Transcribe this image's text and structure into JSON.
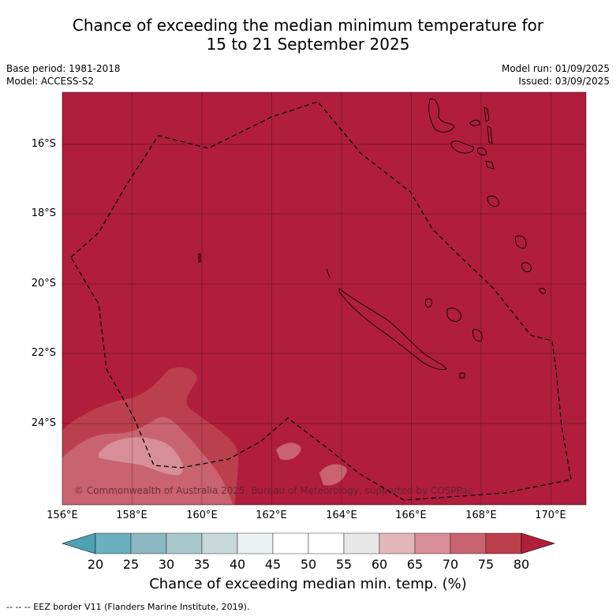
{
  "title_line1": "Chance of exceeding the median minimum temperature for",
  "title_line2": "15 to 21 September 2025",
  "base_period": "Base period: 1981-2018",
  "model": "Model: ACCESS-S2",
  "model_run": "Model run: 01/09/2025",
  "issued": "Issued: 03/09/2025",
  "lat_labels": [
    "16°S",
    "18°S",
    "20°S",
    "22°S",
    "24°S"
  ],
  "lon_labels": [
    "156°E",
    "158°E",
    "160°E",
    "162°E",
    "164°E",
    "166°E",
    "168°E",
    "170°E"
  ],
  "copyright": "© Commonwealth of Australia 2025, Bureau of Meteorology, supported by COSPPac",
  "colorbar": {
    "ticks": [
      "20",
      "25",
      "30",
      "35",
      "40",
      "45",
      "50",
      "55",
      "60",
      "65",
      "70",
      "75",
      "80"
    ],
    "colors": [
      "#4fa2b2",
      "#6aafbd",
      "#8ab7c2",
      "#a9c8cd",
      "#c8d9dc",
      "#ebf1f2",
      "#ffffff",
      "#ffffff",
      "#e7e7e7",
      "#e3b7bb",
      "#d78e96",
      "#c9636f",
      "#bc3f4e",
      "#b01e3c"
    ],
    "title": "Chance of exceeding median min. temp. (%)"
  },
  "map_colors": {
    "dominant": "#b01e3c",
    "zone_75": "#bc3f4e",
    "zone_70": "#c9636f",
    "zone_65": "#d78e96"
  },
  "legend_footer": "-- -- -- EEZ border V11 (Flanders Marine Institute, 2019)."
}
